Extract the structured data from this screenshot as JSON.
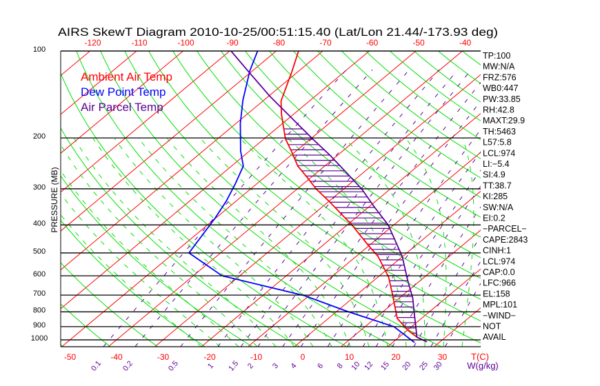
{
  "chart_data": {
    "type": "line",
    "subtype": "skew-t log-p",
    "title": "AIRS SkewT Diagram 2010-10-25/00:51:15.40 (Lat/Lon 21.44/-173.93 deg)",
    "ylabel": "PRESSURE (MB)",
    "xlabel": "T(C)",
    "mixing_ratio_label": "W(g/kg)",
    "pressure_ticks": [
      100,
      200,
      300,
      400,
      500,
      600,
      700,
      800,
      900,
      1000
    ],
    "top_temp_ticks": [
      -120,
      -110,
      -100,
      -90,
      -80,
      -70,
      -60,
      -50,
      -40
    ],
    "bottom_temp_ticks": [
      -50,
      -40,
      -30,
      -20,
      -10,
      0,
      10,
      20,
      30
    ],
    "mixing_ratio_ticks": [
      "0.1",
      "0.2",
      "0.5",
      "1",
      "1.5",
      "2",
      "3",
      "4",
      "6",
      "8",
      "10",
      "12",
      "15",
      "20",
      "25",
      "30"
    ],
    "ylim_mb": [
      1056,
      100
    ],
    "legend": [
      {
        "label": "Ambient Air Temp",
        "color": "#ff0000"
      },
      {
        "label": "Dew Point Temp",
        "color": "#0000ff"
      },
      {
        "label": "Air Parcel Temp",
        "color": "#5a0096"
      }
    ],
    "series": [
      {
        "name": "Ambient Air Temp",
        "color": "#ff0000",
        "p": [
          100,
          117,
          149,
          166,
          201,
          225,
          250,
          276,
          300,
          333,
          380,
          395,
          471,
          514,
          606,
          696,
          843,
          926,
          978,
          1016
        ],
        "t": [
          -75.2,
          -71.5,
          -66.1,
          -62.5,
          -55.5,
          -50.4,
          -45.8,
          -40.4,
          -36.0,
          -29.7,
          -22.0,
          -19.7,
          -10.2,
          -5.3,
          2.3,
          7.6,
          14.8,
          20.1,
          23.8,
          27.2
        ]
      },
      {
        "name": "Dew Point Temp",
        "color": "#0000ff",
        "p": [
          100,
          117,
          148,
          178,
          222,
          250,
          287,
          331,
          380,
          500,
          600,
          703,
          798,
          900,
          1021
        ],
        "t": [
          -84.0,
          -80.6,
          -74.5,
          -69.1,
          -61.9,
          -57.5,
          -54.7,
          -52.1,
          -50.1,
          -46.8,
          -33.8,
          -11.0,
          2.4,
          16.2,
          24.7
        ]
      },
      {
        "name": "Air Parcel Temp",
        "color": "#5a0096",
        "p": [
          100,
          119,
          143,
          201,
          230,
          262,
          300,
          350,
          400,
          514,
          620,
          715,
          829,
          926,
          978,
          1016
        ],
        "t": [
          -89.7,
          -80.1,
          -69.9,
          -49.7,
          -41.5,
          -34.0,
          -26.2,
          -18.3,
          -11.2,
          -0.1,
          7.1,
          12.8,
          18.0,
          21.9,
          23.8,
          27.2
        ]
      }
    ],
    "colors": {
      "isotherm": "#ff0000",
      "dry_adiabat": "#00e000",
      "moist_adiabat": "#00e000",
      "mixing_ratio": "#5a0096",
      "hatch": "#5a0096",
      "axis": "#000000"
    }
  },
  "indices": [
    "TP:100",
    "MW:N/A",
    "FRZ:576",
    "WB0:447",
    "PW:33.85",
    "RH:42.8",
    "MAXT:29.9",
    "TH:5463",
    "L57:5.8",
    "LCL:974",
    "LI:−5.4",
    "SI:4.9",
    "TT:38.7",
    "KI:285",
    "SW:N/A",
    "EI:0.2",
    "−PARCEL−",
    "CAPE:2843",
    "CINH:1",
    "LCL:974",
    "CAP:0.0",
    "LFC:966",
    "EL:158",
    "MPL:101",
    "−WIND−",
    "NOT",
    "AVAIL"
  ]
}
